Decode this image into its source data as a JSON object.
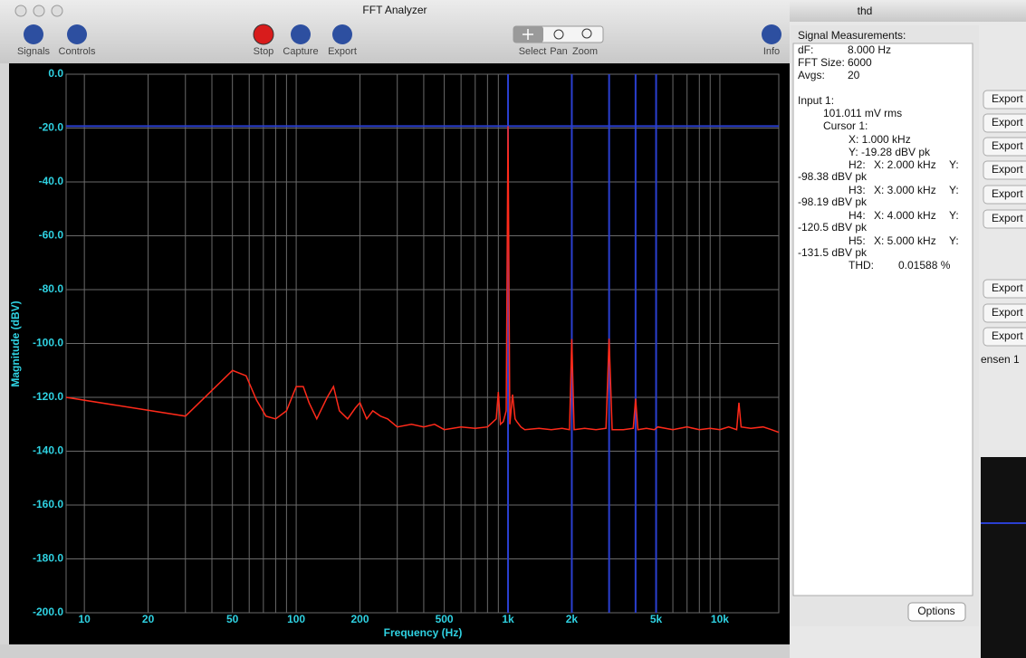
{
  "window": {
    "title": "FFT Analyzer",
    "toolbar": [
      "Signals",
      "Controls",
      "Stop",
      "Capture",
      "Export",
      "Select",
      "Pan",
      "Zoom",
      "Info"
    ]
  },
  "chart_data": {
    "type": "line",
    "color": "#ff2a1a",
    "log_x": true,
    "grid": true,
    "xlabel": "Frequency (Hz)",
    "ylabel": "Magnitude (dBV)",
    "xlim": [
      8.2,
      18970
    ],
    "ylim": [
      -200,
      0
    ],
    "xticks": [
      10,
      20,
      50,
      100,
      200,
      500,
      {
        "value": 1000,
        "label": "1k"
      },
      {
        "value": 2000,
        "label": "2k"
      },
      {
        "value": 5000,
        "label": "5k"
      },
      {
        "value": 10000,
        "label": "10k"
      }
    ],
    "xminor": [
      30,
      40,
      60,
      70,
      80,
      90,
      300,
      400,
      600,
      700,
      800,
      900,
      3000,
      4000,
      6000,
      7000,
      8000,
      9000
    ],
    "yticks": [
      {
        "value": 0,
        "label": "0.0"
      },
      {
        "value": -20,
        "label": "-20.0"
      },
      {
        "value": -40,
        "label": "-40.0"
      },
      {
        "value": -60,
        "label": "-60.0"
      },
      {
        "value": -80,
        "label": "-80.0"
      },
      {
        "value": -100,
        "label": "-100.0"
      },
      {
        "value": -120,
        "label": "-120.0"
      },
      {
        "value": -140,
        "label": "-140.0"
      },
      {
        "value": -160,
        "label": "-160.0"
      },
      {
        "value": -180,
        "label": "-180.0"
      },
      {
        "value": -200,
        "label": "-200.0"
      }
    ],
    "cursor_x": [
      1000,
      2000,
      3000,
      4000,
      5000
    ],
    "cursor_y": -19.28,
    "cursor_color": "#2a3fd0",
    "x": [
      8.2,
      30,
      50,
      58,
      65,
      72,
      80,
      90,
      100,
      108,
      115,
      125,
      140,
      150,
      160,
      175,
      190,
      200,
      215,
      230,
      250,
      270,
      300,
      350,
      400,
      450,
      500,
      600,
      700,
      800,
      880,
      900,
      920,
      950,
      980,
      1000,
      1020,
      1050,
      1080,
      1100,
      1150,
      1200,
      1400,
      1600,
      1800,
      1950,
      2000,
      2050,
      2300,
      2600,
      2900,
      3000,
      3100,
      3500,
      3900,
      4000,
      4100,
      4500,
      4900,
      5000,
      5100,
      6000,
      7000,
      8000,
      9000,
      10000,
      11000,
      12000,
      12300,
      12600,
      14000,
      16000,
      17500,
      18970
    ],
    "values": [
      -120,
      -127,
      -110,
      -112,
      -121,
      -127,
      -128,
      -125,
      -116,
      -116,
      -122,
      -128,
      -120,
      -116,
      -125,
      -128,
      -124,
      -122,
      -128,
      -125,
      -127,
      -128,
      -131,
      -130,
      -131,
      -130,
      -132,
      -131,
      -131.5,
      -131,
      -128,
      -118,
      -130,
      -129,
      -125,
      -19.28,
      -130,
      -119,
      -128,
      -129,
      -131,
      -132,
      -131.5,
      -132,
      -131.5,
      -132,
      -98.38,
      -132,
      -131.5,
      -132,
      -131.5,
      -98.19,
      -132,
      -132,
      -131.5,
      -120.5,
      -132,
      -131.5,
      -132,
      -131.5,
      -131,
      -132,
      -131,
      -132,
      -131.5,
      -132,
      -131,
      -132,
      -122,
      -131,
      -131.5,
      -131,
      -132,
      -133
    ]
  },
  "measurements": {
    "title": "Signal Measurements:",
    "rows": [
      [
        "dF:",
        "8.000 Hz"
      ],
      [
        "FFT Size:",
        "6000"
      ],
      [
        "Avgs:",
        "20"
      ],
      [
        "Input 1:"
      ],
      [
        "101.011 mV rms"
      ],
      [
        "Cursor 1:"
      ],
      [
        "X: 1.000 kHz"
      ],
      [
        "Y: -19.28 dBV pk"
      ],
      [
        "H2:",
        "X: 2.000 kHz",
        "Y:"
      ],
      [
        "-98.38 dBV pk"
      ],
      [
        "H3:",
        "X: 3.000 kHz",
        "Y:"
      ],
      [
        "-98.19 dBV pk"
      ],
      [
        "H4:",
        "X: 4.000 kHz",
        "Y:"
      ],
      [
        "-120.5 dBV pk"
      ],
      [
        "H5:",
        "X: 5.000 kHz",
        "Y:"
      ],
      [
        "-131.5 dBV pk"
      ],
      [
        "THD:",
        "0.01588 %"
      ]
    ],
    "button": "Options"
  },
  "background_window": {
    "title": "thd",
    "buttons": [
      "Export",
      "Export",
      "Export",
      "Export",
      "Export",
      "Export",
      "Export",
      "Export",
      "Export"
    ],
    "fragment": "ensen 1"
  }
}
